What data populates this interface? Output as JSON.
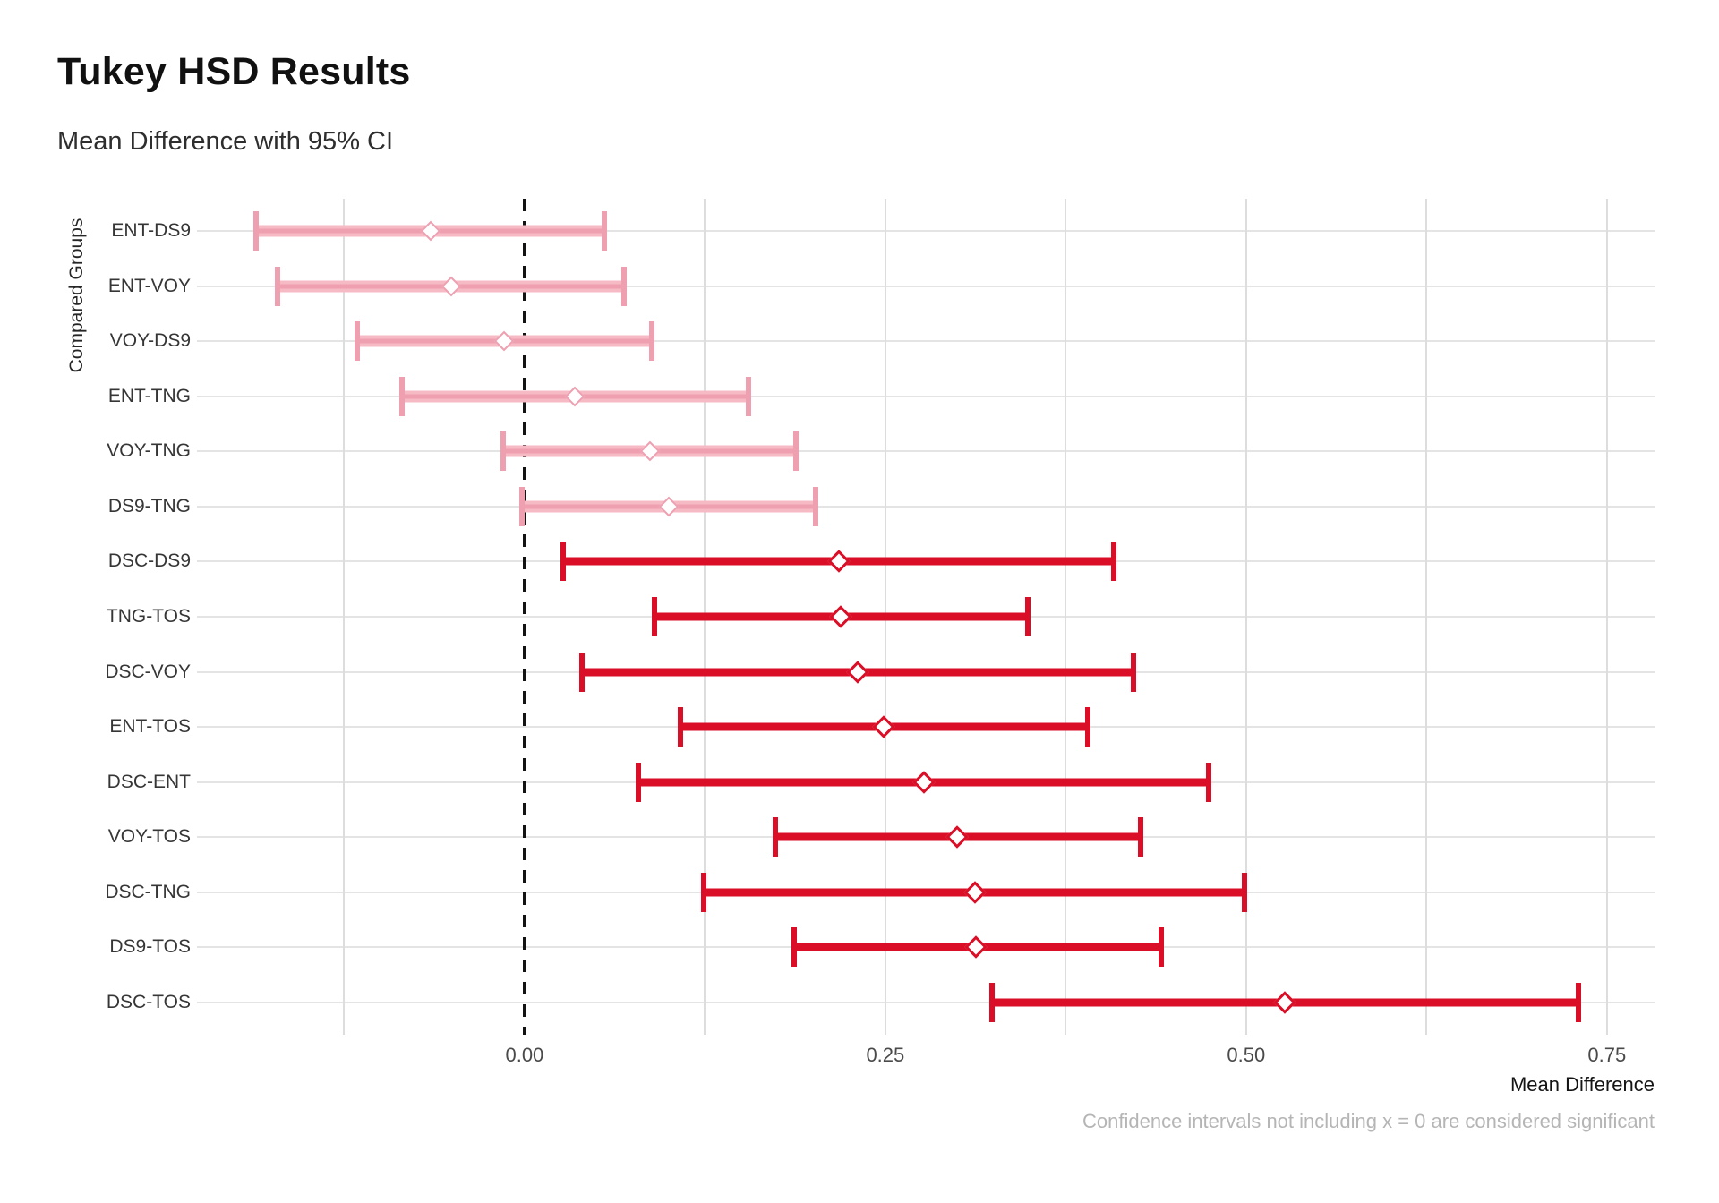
{
  "header": {
    "title": "Tukey HSD Results",
    "subtitle": "Mean Difference with 95% CI"
  },
  "chart_data": {
    "type": "errorbar",
    "orientation": "horizontal",
    "title": "Tukey HSD Results",
    "subtitle": "Mean Difference with 95% CI",
    "xlabel": "Mean Difference",
    "ylabel": "Compared Groups",
    "caption": "Confidence intervals not including x = 0 are considered significant",
    "xlim": [
      -0.227,
      0.783
    ],
    "grid": true,
    "legend_position": "none",
    "reference_line_x": 0,
    "vertical_gridlines": [
      -0.125,
      0.125,
      0.25,
      0.375,
      0.5,
      0.625,
      0.75
    ],
    "x_ticks": [
      {
        "value": 0.0,
        "label": "0.00"
      },
      {
        "value": 0.25,
        "label": "0.25"
      },
      {
        "value": 0.5,
        "label": "0.50"
      },
      {
        "value": 0.75,
        "label": "0.75"
      }
    ],
    "rows": [
      {
        "group": "ENT-DS9",
        "mean": -0.065,
        "ci_low": -0.186,
        "ci_high": 0.055,
        "significant": false
      },
      {
        "group": "ENT-VOY",
        "mean": -0.051,
        "ci_low": -0.171,
        "ci_high": 0.069,
        "significant": false
      },
      {
        "group": "VOY-DS9",
        "mean": -0.014,
        "ci_low": -0.116,
        "ci_high": 0.088,
        "significant": false
      },
      {
        "group": "ENT-TNG",
        "mean": 0.035,
        "ci_low": -0.085,
        "ci_high": 0.155,
        "significant": false
      },
      {
        "group": "VOY-TNG",
        "mean": 0.087,
        "ci_low": -0.015,
        "ci_high": 0.188,
        "significant": false
      },
      {
        "group": "DS9-TNG",
        "mean": 0.1,
        "ci_low": -0.002,
        "ci_high": 0.202,
        "significant": false
      },
      {
        "group": "DSC-DS9",
        "mean": 0.218,
        "ci_low": 0.027,
        "ci_high": 0.408,
        "significant": true
      },
      {
        "group": "TNG-TOS",
        "mean": 0.219,
        "ci_low": 0.09,
        "ci_high": 0.349,
        "significant": true
      },
      {
        "group": "DSC-VOY",
        "mean": 0.231,
        "ci_low": 0.04,
        "ci_high": 0.422,
        "significant": true
      },
      {
        "group": "ENT-TOS",
        "mean": 0.249,
        "ci_low": 0.108,
        "ci_high": 0.39,
        "significant": true
      },
      {
        "group": "DSC-ENT",
        "mean": 0.277,
        "ci_low": 0.079,
        "ci_high": 0.474,
        "significant": true
      },
      {
        "group": "VOY-TOS",
        "mean": 0.3,
        "ci_low": 0.174,
        "ci_high": 0.427,
        "significant": true
      },
      {
        "group": "DSC-TNG",
        "mean": 0.312,
        "ci_low": 0.124,
        "ci_high": 0.499,
        "significant": true
      },
      {
        "group": "DS9-TOS",
        "mean": 0.313,
        "ci_low": 0.187,
        "ci_high": 0.441,
        "significant": true
      },
      {
        "group": "DSC-TOS",
        "mean": 0.527,
        "ci_low": 0.324,
        "ci_high": 0.73,
        "significant": true
      }
    ],
    "colors": {
      "significant": "#da0e26",
      "nonsignificant_band": "#f6bac4",
      "nonsignificant_core": "#ee9fb0",
      "grid": "#e4e4e4",
      "reference_line": "#131313"
    }
  }
}
